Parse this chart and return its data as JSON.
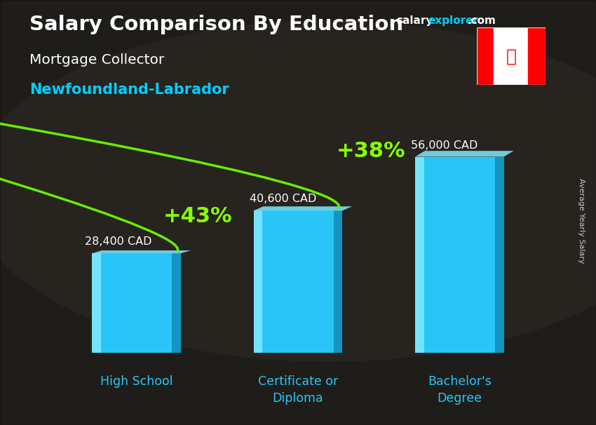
{
  "title_main": "Salary Comparison By Education",
  "subtitle1": "Mortgage Collector",
  "subtitle2": "Newfoundland-Labrador",
  "categories": [
    "High School",
    "Certificate or\nDiploma",
    "Bachelor’s\nDegree"
  ],
  "values": [
    28400,
    40600,
    56000
  ],
  "value_labels": [
    "28,400 CAD",
    "40,600 CAD",
    "56,000 CAD"
  ],
  "pct_labels": [
    "+43%",
    "+38%"
  ],
  "bar_face_color": "#29c5f6",
  "bar_left_color": "#7de8ff",
  "bar_right_color": "#1190bb",
  "bar_top_color": "#7de8ff",
  "ylabel_text": "Average Yearly Salary",
  "bg_color": "#1a1a2e",
  "title_color": "#ffffff",
  "subtitle1_color": "#ffffff",
  "subtitle2_color": "#00cfff",
  "value_label_color": "#ffffff",
  "pct_color": "#88ff00",
  "arrow_color": "#66ee00",
  "cat_label_color": "#29c5f6",
  "watermark_salary": "salary",
  "watermark_explorer": "explorer",
  "watermark_com": ".com",
  "fig_width": 8.5,
  "fig_height": 6.06,
  "bar_width": 0.55,
  "ylim_max": 68000
}
